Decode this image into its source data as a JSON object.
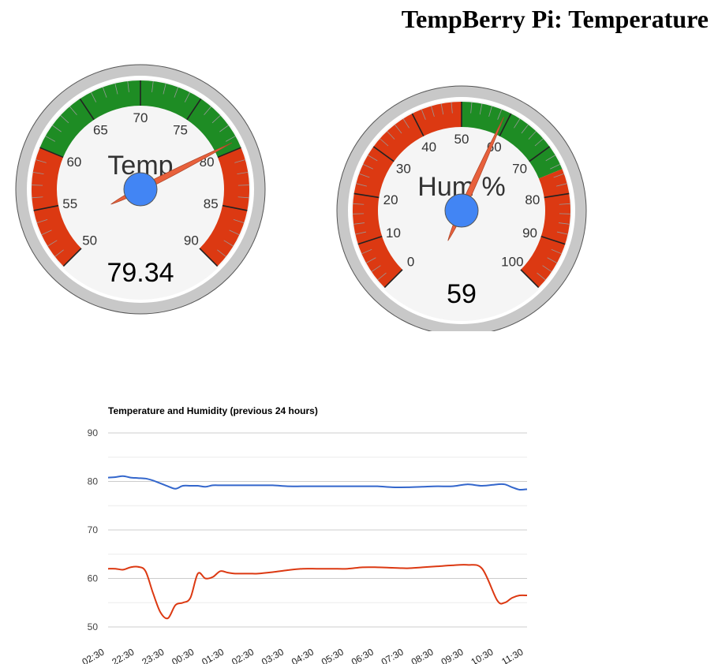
{
  "page": {
    "title": "TempBerry Pi: Temperature"
  },
  "gauges": [
    {
      "id": "temp",
      "label": "Temp",
      "value": 79.34,
      "display_value": "79.34",
      "min": 50,
      "max": 90,
      "major_ticks": [
        "50",
        "55",
        "60",
        "65",
        "70",
        "75",
        "80",
        "85",
        "90"
      ],
      "zones": [
        {
          "from": 50,
          "to": 60,
          "color": "#dc3912"
        },
        {
          "from": 60,
          "to": 80,
          "color": "#1e8c24"
        },
        {
          "from": 80,
          "to": 90,
          "color": "#dc3912"
        }
      ]
    },
    {
      "id": "hum",
      "label": "Hum %",
      "value": 59,
      "display_value": "59",
      "min": 0,
      "max": 100,
      "major_ticks": [
        "0",
        "10",
        "20",
        "30",
        "40",
        "50",
        "60",
        "70",
        "80",
        "90",
        "100"
      ],
      "zones": [
        {
          "from": 0,
          "to": 50,
          "color": "#dc3912"
        },
        {
          "from": 50,
          "to": 75,
          "color": "#1e8c24"
        },
        {
          "from": 75,
          "to": 100,
          "color": "#dc3912"
        }
      ]
    }
  ],
  "colors": {
    "needle": "#e8613c",
    "needle_hub": "#4285f4",
    "bezel": "#c8c8c8",
    "dial_face": "#f5f5f5",
    "temperature_series": "#3366cc",
    "humidity_series": "#dc3912",
    "gridline": "#cccccc"
  },
  "chart_data": {
    "type": "line",
    "title": "Temperature and Humidity (previous 24 hours)",
    "xlabel": "",
    "ylabel": "",
    "ylim": [
      50,
      90
    ],
    "y_ticks": [
      50,
      60,
      70,
      80,
      90
    ],
    "grid": true,
    "legend": "none",
    "x_tick_labels": [
      "02:30",
      "22:30",
      "23:30",
      "00:30",
      "01:30",
      "02:30",
      "03:30",
      "04:30",
      "05:30",
      "06:30",
      "07:30",
      "08:30",
      "09:30",
      "10:30",
      "11:30"
    ],
    "x": [
      0,
      0.25,
      0.5,
      0.75,
      1,
      1.25,
      1.5,
      1.75,
      2,
      2.25,
      2.5,
      2.75,
      3,
      3.25,
      3.5,
      3.75,
      4,
      4.25,
      4.5,
      4.75,
      5,
      5.5,
      6,
      6.5,
      7,
      7.5,
      8,
      8.5,
      9,
      9.5,
      10,
      10.5,
      11,
      11.5,
      12,
      12.5,
      13,
      13.25,
      13.5,
      13.75,
      14
    ],
    "series": [
      {
        "values": [
          80.8,
          80.9,
          81.1,
          80.8,
          80.7,
          80.6,
          80.2,
          79.6,
          79.0,
          78.5,
          79.1,
          79.1,
          79.1,
          78.9,
          79.2,
          79.2,
          79.2,
          79.2,
          79.2,
          79.2,
          79.2,
          79.2,
          79.0,
          79.0,
          79.0,
          79.0,
          79.0,
          79.0,
          79.0,
          78.8,
          78.8,
          78.9,
          79.0,
          79.0,
          79.4,
          79.1,
          79.4,
          79.4,
          78.8,
          78.3,
          78.4
        ]
      },
      {
        "values": [
          62.0,
          62.0,
          61.8,
          62.3,
          62.4,
          61.5,
          57.0,
          53.0,
          51.8,
          54.5,
          55.0,
          56.0,
          61.0,
          60.0,
          60.3,
          61.5,
          61.2,
          61.0,
          61.0,
          61.0,
          61.0,
          61.3,
          61.7,
          62.0,
          62.0,
          62.0,
          62.0,
          62.3,
          62.3,
          62.2,
          62.1,
          62.3,
          62.5,
          62.7,
          62.8,
          62.0,
          55.5,
          55.0,
          56.0,
          56.5,
          56.5
        ]
      }
    ]
  }
}
